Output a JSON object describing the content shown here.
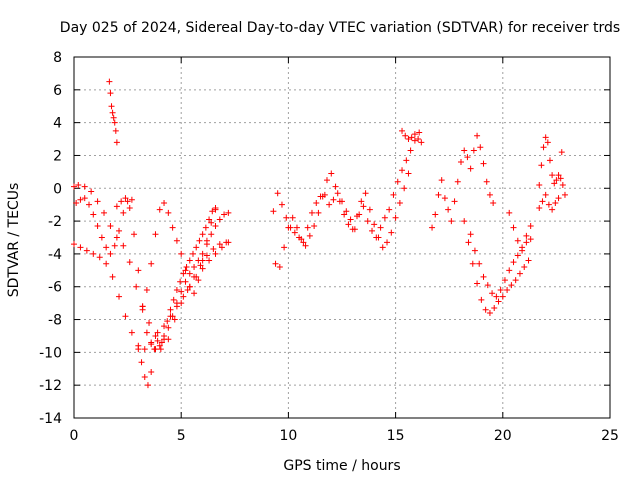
{
  "chart_data": {
    "type": "scatter",
    "title": "Day 025 of 2024, Sidereal Day-to-day VTEC variation (SDTVAR) for receiver trds",
    "xlabel": "GPS time / hours",
    "ylabel": "SDTVAR / TECUs",
    "xlim": [
      0,
      25
    ],
    "ylim": [
      -14,
      8
    ],
    "xticks": [
      0,
      5,
      10,
      15,
      20,
      25
    ],
    "yticks": [
      -14,
      -12,
      -10,
      -8,
      -6,
      -4,
      -2,
      0,
      2,
      4,
      6,
      8
    ],
    "grid": true,
    "marker": "+",
    "color": "#ff0000",
    "series": [
      {
        "name": "s1",
        "x": [
          0.0,
          0.2,
          0.5,
          0.8,
          1.1,
          1.4,
          1.7,
          2.0,
          2.3,
          2.6,
          2.9,
          3.2,
          3.5,
          3.8,
          4.1,
          4.4,
          4.7,
          5.0,
          5.3,
          5.6,
          5.9,
          6.2,
          6.5,
          6.8,
          7.1
        ],
        "y": [
          0.1,
          0.2,
          0.1,
          -0.2,
          -0.8,
          -1.5,
          -2.3,
          -3.0,
          -3.5,
          -4.5,
          -6.0,
          -7.2,
          -8.2,
          -9.0,
          -9.4,
          -9.2,
          -8.0,
          -7.0,
          -6.2,
          -5.4,
          -4.7,
          -4.1,
          -3.7,
          -3.4,
          -3.3
        ]
      },
      {
        "name": "s2",
        "x": [
          0.0,
          0.3,
          0.6,
          0.9,
          1.2,
          1.5,
          1.8,
          2.1,
          2.4,
          2.7,
          3.0,
          3.3,
          3.6,
          3.9,
          4.2,
          4.5,
          4.8,
          5.1,
          5.4,
          5.7,
          6.0,
          6.3,
          6.6,
          6.9,
          7.2
        ],
        "y": [
          -3.4,
          -3.6,
          -3.8,
          -4.0,
          -4.2,
          -4.6,
          -5.4,
          -6.6,
          -7.8,
          -8.8,
          -9.6,
          -9.8,
          -9.4,
          -8.8,
          -8.4,
          -7.8,
          -7.2,
          -6.6,
          -6.0,
          -5.4,
          -4.9,
          -4.4,
          -4.0,
          -3.6,
          -3.3
        ]
      },
      {
        "name": "s3",
        "x": [
          0.1,
          0.3,
          0.5,
          0.7,
          0.9,
          1.1,
          1.3,
          1.5,
          1.7,
          1.9,
          2.1,
          2.3,
          2.5,
          2.7
        ],
        "y": [
          -0.9,
          -0.7,
          -0.6,
          -1.0,
          -1.6,
          -2.3,
          -3.0,
          -3.6,
          -4.0,
          -3.5,
          -2.6,
          -1.5,
          -0.8,
          -0.7
        ]
      },
      {
        "name": "s4",
        "x": [
          2.0,
          2.2,
          2.4,
          2.6,
          2.8,
          3.0,
          3.2,
          3.4,
          3.6,
          3.8,
          4.0,
          4.2,
          4.4,
          4.6,
          4.8,
          5.0,
          5.2,
          5.4,
          5.6,
          5.8,
          6.0,
          6.2,
          6.4,
          6.6,
          6.8,
          7.0,
          7.2
        ],
        "y": [
          -1.1,
          -0.8,
          -0.6,
          -1.2,
          -2.8,
          -5.0,
          -7.2,
          -8.8,
          -9.5,
          -9.8,
          -9.6,
          -9.2,
          -8.5,
          -7.8,
          -7.0,
          -6.3,
          -5.7,
          -5.2,
          -4.8,
          -4.4,
          -4.0,
          -3.4,
          -2.8,
          -2.3,
          -1.9,
          -1.6,
          -1.5
        ]
      },
      {
        "name": "s5",
        "x": [
          3.0,
          3.15,
          3.3,
          3.45,
          3.6,
          3.75,
          3.9,
          4.05,
          4.2,
          4.35,
          4.5,
          4.65,
          4.8,
          4.95,
          5.1,
          5.25,
          5.4,
          5.55,
          5.7,
          5.85,
          6.0,
          6.15,
          6.3,
          6.45,
          6.6
        ],
        "y": [
          -9.8,
          -10.6,
          -11.5,
          -12.0,
          -11.2,
          -9.8,
          -9.3,
          -9.8,
          -9.0,
          -8.1,
          -7.4,
          -6.8,
          -6.2,
          -5.7,
          -5.2,
          -4.8,
          -4.4,
          -4.0,
          -3.6,
          -3.2,
          -2.8,
          -2.4,
          -1.9,
          -1.4,
          -1.2
        ]
      },
      {
        "name": "s6",
        "x": [
          1.65,
          1.7,
          1.75,
          1.8,
          1.85,
          1.9,
          1.95,
          2.0
        ],
        "y": [
          6.5,
          5.8,
          5.0,
          4.6,
          4.3,
          4.0,
          3.5,
          2.8
        ]
      },
      {
        "name": "s7",
        "x": [
          3.2,
          3.4,
          3.6,
          3.8,
          4.0,
          4.2,
          4.4,
          4.6,
          4.8,
          5.0,
          5.2,
          5.4,
          5.6,
          5.8,
          6.0,
          6.2,
          6.4,
          6.6
        ],
        "y": [
          -7.4,
          -6.2,
          -4.6,
          -2.8,
          -1.3,
          -0.9,
          -1.5,
          -2.4,
          -3.2,
          -4.0,
          -5.0,
          -6.0,
          -6.4,
          -5.6,
          -4.4,
          -3.2,
          -2.1,
          -1.3
        ]
      },
      {
        "name": "s8",
        "x": [
          9.3,
          9.5,
          9.7,
          9.9,
          10.1,
          10.3,
          10.5,
          10.7,
          10.9,
          11.1,
          11.3,
          11.5,
          11.7,
          11.9,
          12.1,
          12.3,
          12.5,
          12.7,
          12.9,
          13.1,
          13.3,
          13.5,
          13.7,
          13.9,
          14.1,
          14.3,
          14.5,
          14.7,
          14.9,
          15.1,
          15.3,
          15.5,
          15.7,
          15.9,
          16.1
        ],
        "y": [
          -1.4,
          -0.3,
          -1.0,
          -1.8,
          -2.4,
          -2.7,
          -3.0,
          -3.3,
          -2.4,
          -1.5,
          -0.9,
          -0.5,
          -0.4,
          -1.0,
          -0.7,
          -0.3,
          -0.8,
          -1.4,
          -1.9,
          -2.5,
          -1.6,
          -1.1,
          -2.0,
          -2.6,
          -3.0,
          -2.4,
          -1.8,
          -1.3,
          -0.4,
          0.4,
          1.1,
          1.7,
          2.3,
          2.9,
          3.4
        ]
      },
      {
        "name": "s9",
        "x": [
          9.4,
          9.6,
          9.8,
          10.0,
          10.2,
          10.4,
          10.6,
          10.8,
          11.0,
          11.2,
          11.4,
          11.6,
          11.8,
          12.0,
          12.2,
          12.4,
          12.6,
          12.8,
          13.0,
          13.2,
          13.4,
          13.6,
          13.8,
          14.0,
          14.2,
          14.4,
          14.6,
          14.8,
          15.0,
          15.2,
          15.4,
          15.6
        ],
        "y": [
          -4.6,
          -4.8,
          -3.6,
          -2.4,
          -1.8,
          -2.4,
          -3.1,
          -3.5,
          -2.9,
          -2.3,
          -1.5,
          -0.5,
          0.5,
          0.9,
          0.1,
          -0.8,
          -1.6,
          -2.2,
          -2.5,
          -1.7,
          -0.8,
          -0.3,
          -1.3,
          -2.2,
          -3.0,
          -3.6,
          -3.3,
          -2.7,
          -1.8,
          -0.9,
          0.0,
          0.9
        ]
      },
      {
        "name": "s10",
        "x": [
          15.3,
          15.45,
          15.6,
          15.75,
          15.9,
          16.05,
          16.2
        ],
        "y": [
          3.5,
          3.2,
          3.0,
          3.1,
          3.3,
          3.0,
          2.8
        ]
      },
      {
        "name": "s11",
        "x": [
          16.7,
          16.85,
          17.0,
          17.15,
          17.3,
          17.45,
          17.6,
          17.75,
          17.9,
          18.05,
          18.2,
          18.35,
          18.5,
          18.65,
          18.8,
          18.95,
          19.1,
          19.25,
          19.4,
          19.55
        ],
        "y": [
          -2.4,
          -1.6,
          -0.4,
          0.5,
          -0.6,
          -1.3,
          -2.0,
          -0.8,
          0.4,
          1.6,
          2.3,
          1.9,
          1.2,
          2.3,
          3.2,
          2.5,
          1.5,
          0.4,
          -0.4,
          -0.9
        ]
      },
      {
        "name": "s12",
        "x": [
          18.2,
          18.4,
          18.6,
          18.8,
          19.0,
          19.2,
          19.4,
          19.6,
          19.8,
          20.0,
          20.2,
          20.4,
          20.6,
          20.8,
          21.0,
          21.2
        ],
        "y": [
          -2.0,
          -3.3,
          -4.6,
          -5.8,
          -6.8,
          -7.4,
          -7.6,
          -7.3,
          -6.9,
          -6.6,
          -6.2,
          -5.9,
          -5.6,
          -5.2,
          -4.8,
          -4.4
        ]
      },
      {
        "name": "s13",
        "x": [
          18.5,
          18.7,
          18.9,
          19.1,
          19.3,
          19.5,
          19.7,
          19.9,
          20.1,
          20.3,
          20.5,
          20.7,
          20.9,
          21.1,
          21.3
        ],
        "y": [
          -2.8,
          -3.8,
          -4.6,
          -5.4,
          -5.9,
          -6.4,
          -6.6,
          -6.2,
          -5.6,
          -5.0,
          -4.5,
          -4.1,
          -3.6,
          -2.9,
          -2.3
        ]
      },
      {
        "name": "s14",
        "x": [
          20.3,
          20.5,
          20.7,
          20.9,
          21.1,
          21.3
        ],
        "y": [
          -1.5,
          -2.4,
          -3.2,
          -3.8,
          -3.3,
          -3.1
        ]
      },
      {
        "name": "s15",
        "x": [
          21.7,
          21.8,
          21.9,
          22.0,
          22.1,
          22.2,
          22.3,
          22.4,
          22.5,
          22.6,
          22.7,
          22.8,
          22.9
        ],
        "y": [
          0.2,
          1.4,
          2.5,
          3.1,
          2.8,
          1.7,
          0.8,
          0.3,
          0.5,
          0.8,
          0.6,
          0.2,
          -0.4
        ]
      },
      {
        "name": "s16",
        "x": [
          21.7,
          21.85,
          22.0,
          22.15,
          22.3,
          22.45,
          22.6,
          22.75
        ],
        "y": [
          -1.2,
          -0.8,
          -0.4,
          -1.0,
          -1.3,
          -0.9,
          -0.6,
          2.2
        ]
      }
    ]
  }
}
